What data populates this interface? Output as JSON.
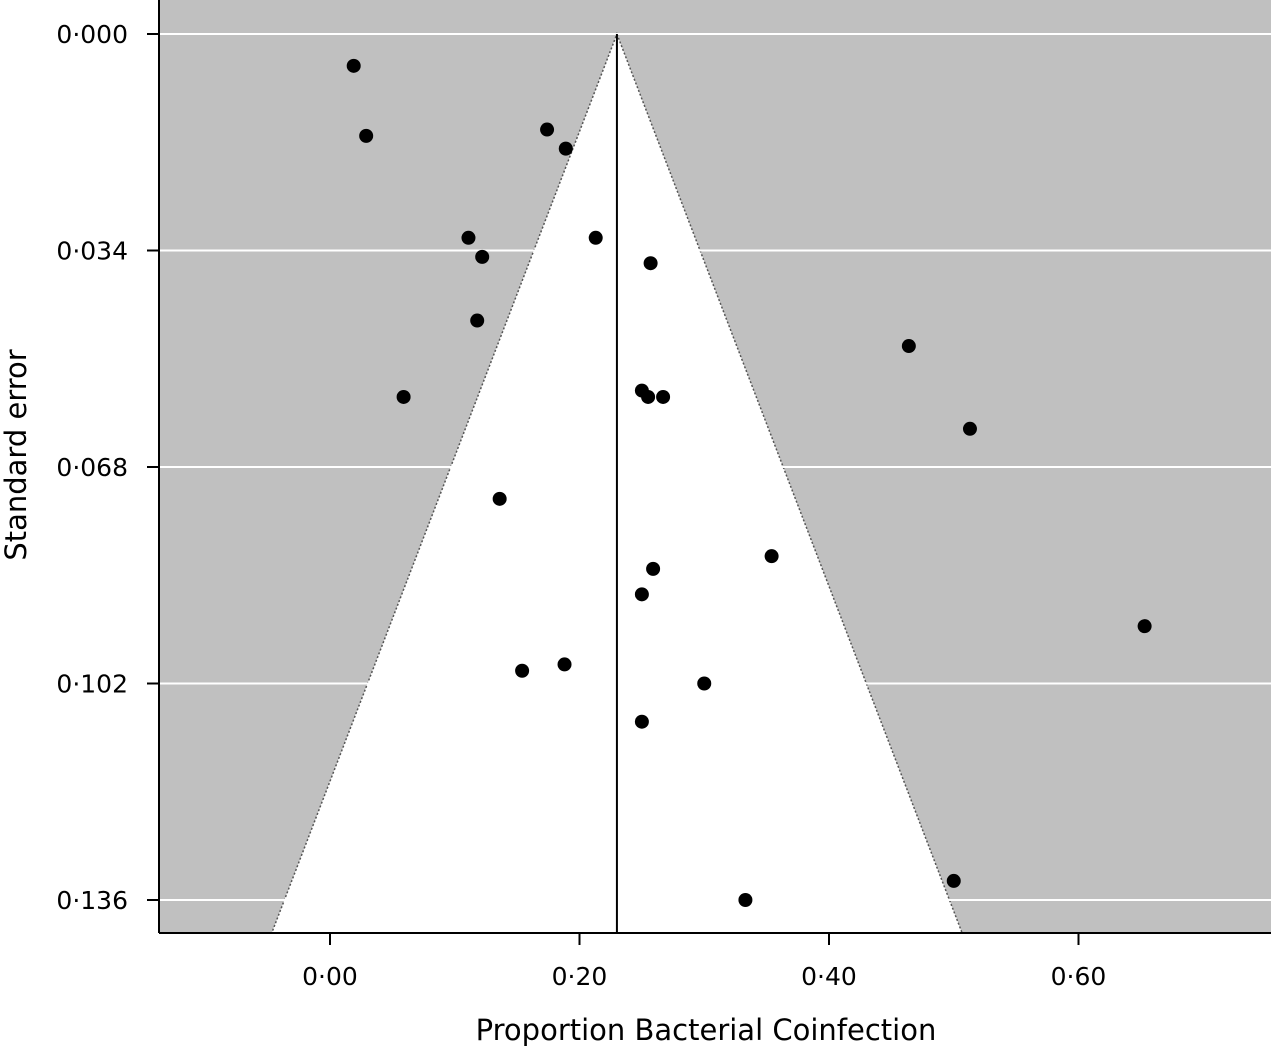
{
  "chart_data": {
    "type": "scatter",
    "subtype": "funnel-plot",
    "title": "",
    "xlabel": "Proportion Bacterial Coinfection",
    "ylabel": "Standard error",
    "xlim": [
      -0.137,
      0.751
    ],
    "ylim": [
      0.0,
      0.141
    ],
    "y_inverted": true,
    "x_ticks": [
      0.0,
      0.2,
      0.4,
      0.6
    ],
    "x_tick_labels": [
      "0·00",
      "0·20",
      "0·40",
      "0·60"
    ],
    "y_ticks": [
      0.0,
      0.034,
      0.068,
      0.102,
      0.136
    ],
    "y_tick_labels": [
      "0·000",
      "0·034",
      "0·068",
      "0·102",
      "0·136"
    ],
    "grid": "horizontal",
    "pooled_estimate": 0.23,
    "funnel_slope": 1.96,
    "colors": {
      "background": "#c0c0c0",
      "funnel": "#ffffff",
      "grid": "#ffffff",
      "points": "#000000",
      "line": "#000000"
    },
    "points": [
      {
        "x": 0.019,
        "y": 0.005
      },
      {
        "x": 0.029,
        "y": 0.016
      },
      {
        "x": 0.174,
        "y": 0.015
      },
      {
        "x": 0.189,
        "y": 0.018
      },
      {
        "x": 0.111,
        "y": 0.032
      },
      {
        "x": 0.122,
        "y": 0.035
      },
      {
        "x": 0.213,
        "y": 0.032
      },
      {
        "x": 0.257,
        "y": 0.036
      },
      {
        "x": 0.118,
        "y": 0.045
      },
      {
        "x": 0.464,
        "y": 0.049
      },
      {
        "x": 0.059,
        "y": 0.057
      },
      {
        "x": 0.25,
        "y": 0.056
      },
      {
        "x": 0.255,
        "y": 0.057
      },
      {
        "x": 0.267,
        "y": 0.057
      },
      {
        "x": 0.513,
        "y": 0.062
      },
      {
        "x": 0.136,
        "y": 0.073
      },
      {
        "x": 0.354,
        "y": 0.082
      },
      {
        "x": 0.259,
        "y": 0.084
      },
      {
        "x": 0.25,
        "y": 0.088
      },
      {
        "x": 0.653,
        "y": 0.093
      },
      {
        "x": 0.188,
        "y": 0.099
      },
      {
        "x": 0.154,
        "y": 0.1
      },
      {
        "x": 0.3,
        "y": 0.102
      },
      {
        "x": 0.25,
        "y": 0.108
      },
      {
        "x": 0.5,
        "y": 0.133
      },
      {
        "x": 0.333,
        "y": 0.136
      }
    ]
  }
}
